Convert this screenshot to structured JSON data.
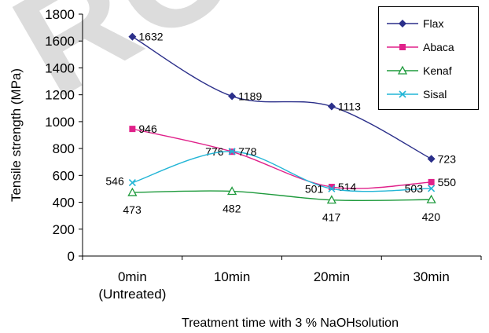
{
  "chart_data": {
    "type": "line",
    "categories": [
      "0min\n(Untreated)",
      "10min",
      "20min",
      "30min"
    ],
    "xlabel": "Treatment time with 3 % NaOHsolution",
    "ylabel": "Tensile strength (MPa)",
    "ylim": [
      0,
      1800
    ],
    "yticks": [
      0,
      200,
      400,
      600,
      800,
      1000,
      1200,
      1400,
      1600,
      1800
    ],
    "grid": false,
    "legend_position": "top-right",
    "series": [
      {
        "name": "Flax",
        "values": [
          1632,
          1189,
          1113,
          723
        ],
        "color": "#2b2f8a",
        "marker": "diamond",
        "labels": [
          "1632",
          "1189",
          "1113",
          "723"
        ]
      },
      {
        "name": "Abaca",
        "values": [
          946,
          776,
          514,
          550
        ],
        "color": "#e0218a",
        "marker": "square",
        "labels": [
          "946",
          "776",
          "514",
          "550"
        ]
      },
      {
        "name": "Kenaf",
        "values": [
          473,
          482,
          417,
          420
        ],
        "color": "#1e9a3c",
        "marker": "triangle",
        "labels": [
          "473",
          "482",
          "417",
          "420"
        ]
      },
      {
        "name": "Sisal",
        "values": [
          546,
          778,
          501,
          503
        ],
        "color": "#22b5d6",
        "marker": "x",
        "labels": [
          "546",
          "778",
          "501",
          "503"
        ]
      }
    ]
  },
  "watermark": "ROOF"
}
